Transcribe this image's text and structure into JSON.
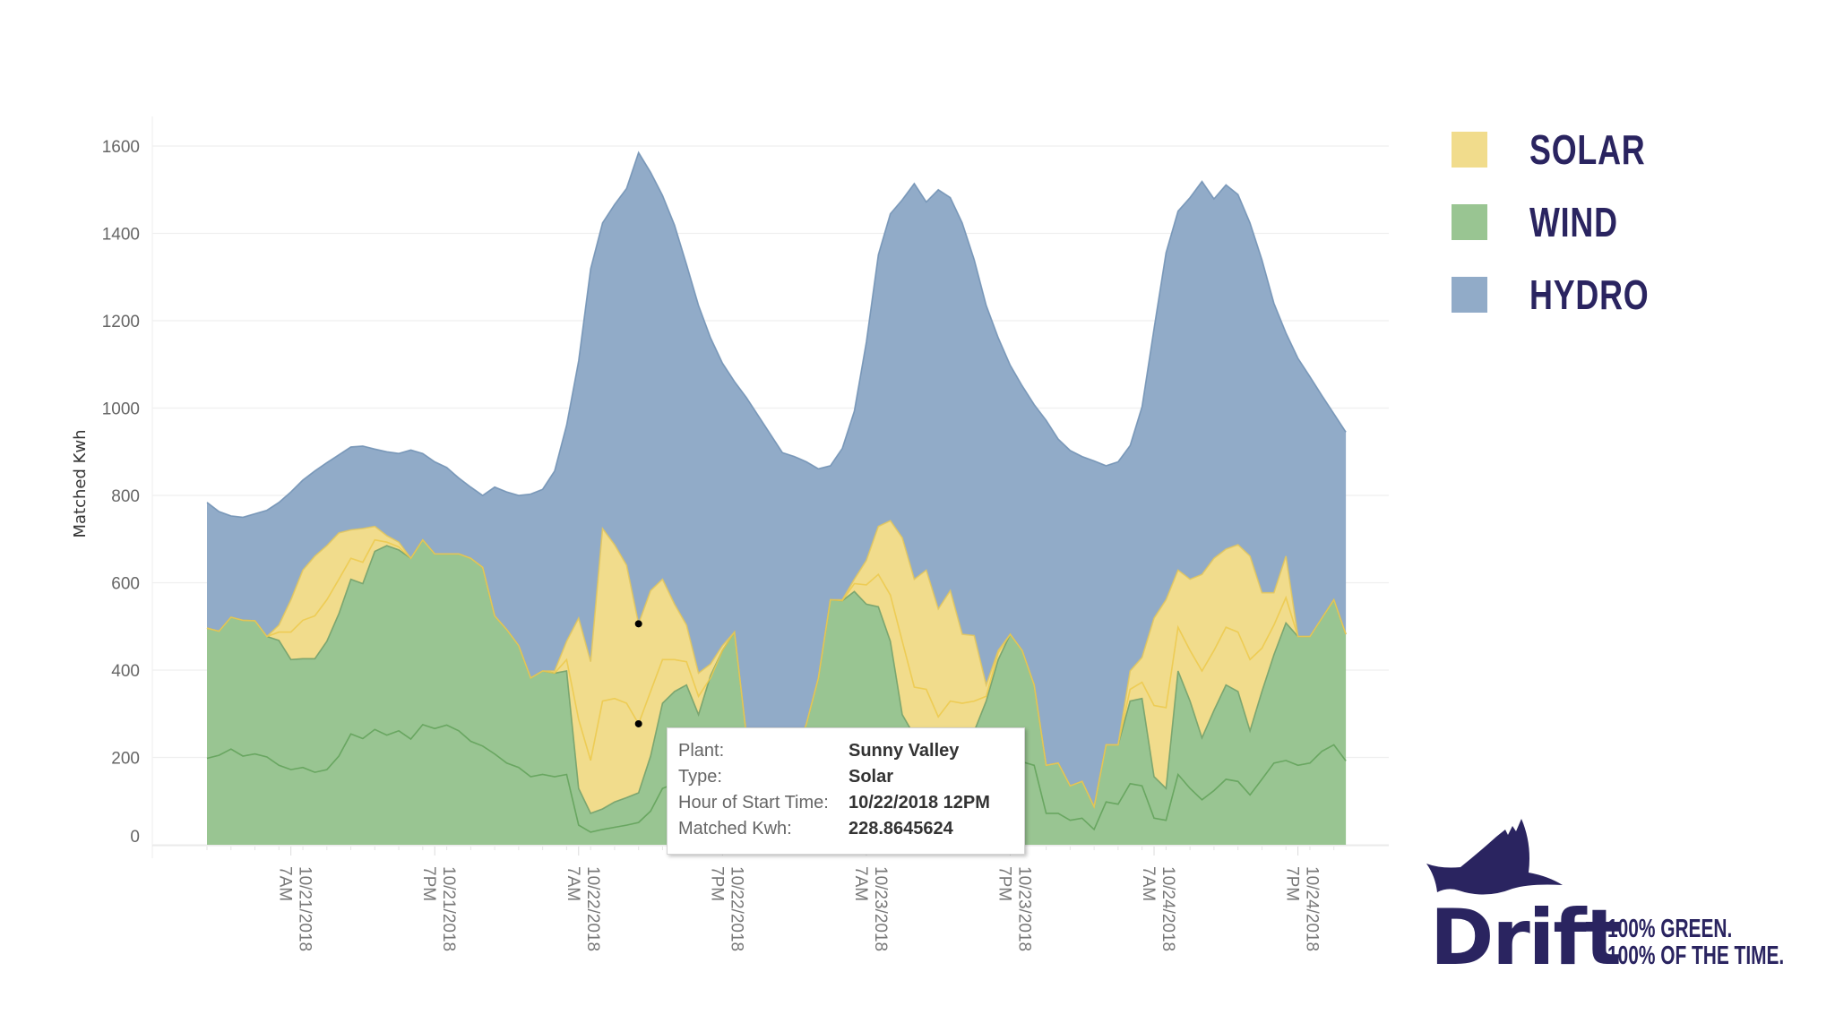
{
  "chart_data": {
    "type": "area",
    "stacked": true,
    "values_are_cumulative_stack_tops": true,
    "x_start": "10/21/2018 12AM",
    "x_step": "1 hour",
    "ylabel": "Matched Kwh",
    "ylim": [
      0,
      1600
    ],
    "yticks": [
      0,
      200,
      400,
      600,
      800,
      1000,
      1200,
      1400,
      1600
    ],
    "grid": true,
    "xticks": [
      {
        "hour": 7,
        "date": "10/21/2018",
        "time": "7AM"
      },
      {
        "hour": 19,
        "date": "10/21/2018",
        "time": "7PM"
      },
      {
        "hour": 31,
        "date": "10/22/2018",
        "time": "7AM"
      },
      {
        "hour": 43,
        "date": "10/22/2018",
        "time": "7PM"
      },
      {
        "hour": 55,
        "date": "10/23/2018",
        "time": "7AM"
      },
      {
        "hour": 67,
        "date": "10/23/2018",
        "time": "7PM"
      },
      {
        "hour": 79,
        "date": "10/24/2018",
        "time": "7AM"
      },
      {
        "hour": 91,
        "date": "10/24/2018",
        "time": "7PM"
      }
    ],
    "series": [
      {
        "type": "Wind",
        "color": "#99c592",
        "line": "#5fa057",
        "values": [
          198,
          205,
          219,
          203,
          208,
          201,
          182,
          172,
          177,
          166,
          172,
          203,
          254,
          243,
          264,
          251,
          261,
          242,
          275,
          266,
          274,
          261,
          237,
          226,
          208,
          187,
          177,
          156,
          161,
          156,
          161,
          45,
          29,
          35,
          40,
          45,
          51,
          77,
          129,
          140,
          150,
          155,
          160,
          170,
          175,
          140,
          130,
          120,
          110,
          100,
          110,
          140,
          170,
          180,
          190,
          185,
          180,
          175,
          160,
          150,
          140,
          130,
          120,
          120,
          130,
          150,
          170,
          185,
          190,
          182,
          72,
          72,
          56,
          61,
          35,
          98,
          93,
          140,
          135,
          61,
          56,
          161,
          129,
          103,
          124,
          150,
          145,
          114,
          150,
          187,
          193,
          182,
          187,
          214,
          229,
          192
        ]
      },
      {
        "type": "Wind",
        "color": "#99c592",
        "line": "#6e9e68",
        "values": [
          496,
          489,
          521,
          514,
          513,
          477,
          468,
          424,
          426,
          426,
          466,
          529,
          608,
          598,
          672,
          685,
          675,
          656,
          698,
          666,
          666,
          666,
          656,
          635,
          524,
          493,
          456,
          382,
          398,
          393,
          398,
          129,
          72,
          82,
          98,
          108,
          119,
          203,
          324,
          351,
          366,
          298,
          387,
          445,
          487,
          250,
          180,
          150,
          140,
          200,
          277,
          382,
          561,
          559,
          580,
          551,
          545,
          466,
          298,
          250,
          220,
          200,
          210,
          230,
          260,
          329,
          424,
          482,
          445,
          366,
          182,
          187,
          135,
          145,
          87,
          229,
          229,
          329,
          335,
          156,
          129,
          398,
          329,
          245,
          308,
          366,
          351,
          261,
          351,
          435,
          508,
          477,
          477,
          519,
          561,
          482
        ]
      },
      {
        "type": "Solar",
        "color": "#f1dc8c",
        "line": "#ecc94a",
        "values": [
          496,
          489,
          521,
          514,
          513,
          477,
          487,
          487,
          514,
          524,
          561,
          608,
          656,
          647,
          698,
          693,
          682,
          656,
          698,
          666,
          666,
          666,
          656,
          635,
          524,
          493,
          456,
          382,
          398,
          393,
          424,
          287,
          193,
          329,
          335,
          324,
          277,
          351,
          424,
          424,
          419,
          340,
          382,
          445,
          487,
          250,
          180,
          150,
          140,
          200,
          277,
          382,
          561,
          559,
          598,
          595,
          619,
          572,
          466,
          361,
          356,
          293,
          329,
          324,
          329,
          340,
          440,
          482,
          445,
          366,
          182,
          187,
          135,
          145,
          87,
          229,
          229,
          356,
          372,
          319,
          314,
          498,
          445,
          398,
          445,
          498,
          487,
          424,
          450,
          503,
          566,
          477,
          477,
          519,
          561,
          482
        ]
      },
      {
        "type": "Solar",
        "plant": "Sunny Valley",
        "color": "#f1dc8c",
        "line": "#e3c65a",
        "values": [
          496,
          489,
          521,
          514,
          513,
          477,
          503,
          561,
          629,
          661,
          685,
          714,
          721,
          724,
          729,
          708,
          693,
          656,
          698,
          666,
          666,
          666,
          656,
          635,
          524,
          493,
          456,
          382,
          398,
          398,
          466,
          519,
          419,
          724,
          687,
          640,
          506,
          582,
          608,
          551,
          503,
          393,
          414,
          456,
          487,
          250,
          180,
          150,
          140,
          200,
          277,
          382,
          561,
          561,
          608,
          651,
          729,
          742,
          703,
          608,
          629,
          540,
          582,
          482,
          479,
          366,
          445,
          482,
          445,
          366,
          182,
          187,
          135,
          145,
          87,
          229,
          229,
          398,
          429,
          519,
          561,
          629,
          608,
          619,
          656,
          677,
          687,
          661,
          577,
          577,
          661,
          477,
          477,
          519,
          561,
          482
        ]
      },
      {
        "type": "Hydro",
        "color": "#91abc8",
        "line": "#6f8fb3",
        "values": [
          784,
          763,
          753,
          750,
          758,
          766,
          784,
          808,
          835,
          856,
          875,
          893,
          911,
          913,
          906,
          900,
          896,
          904,
          896,
          877,
          864,
          840,
          819,
          800,
          819,
          808,
          800,
          803,
          814,
          856,
          961,
          1108,
          1319,
          1424,
          1466,
          1503,
          1585,
          1540,
          1487,
          1419,
          1329,
          1235,
          1161,
          1103,
          1061,
          1024,
          982,
          940,
          898,
          889,
          877,
          861,
          868,
          908,
          993,
          1151,
          1351,
          1445,
          1477,
          1514,
          1472,
          1500,
          1482,
          1424,
          1340,
          1235,
          1161,
          1098,
          1051,
          1008,
          972,
          929,
          903,
          889,
          879,
          868,
          877,
          914,
          1003,
          1182,
          1356,
          1451,
          1482,
          1519,
          1479,
          1511,
          1489,
          1424,
          1340,
          1240,
          1172,
          1114,
          1072,
          1029,
          987,
          945
        ]
      }
    ],
    "highlight": {
      "hour": 36,
      "series_index": 3
    }
  },
  "tooltip": {
    "rows": [
      {
        "label": "Plant:",
        "value": "Sunny Valley"
      },
      {
        "label": "Type:",
        "value": "Solar"
      },
      {
        "label": "Hour of Start Time:",
        "value": "10/22/2018 12PM"
      },
      {
        "label": "Matched Kwh:",
        "value": "228.8645624"
      }
    ]
  },
  "legend": [
    {
      "label": "SOLAR",
      "color": "#f1dc8c"
    },
    {
      "label": "WIND",
      "color": "#99c592"
    },
    {
      "label": "HYDRO",
      "color": "#91abc8"
    }
  ],
  "logo": {
    "word": "Drift",
    "tagline_1": "100% GREEN.",
    "tagline_2": "100% OF THE TIME.",
    "color": "#2a2460"
  }
}
